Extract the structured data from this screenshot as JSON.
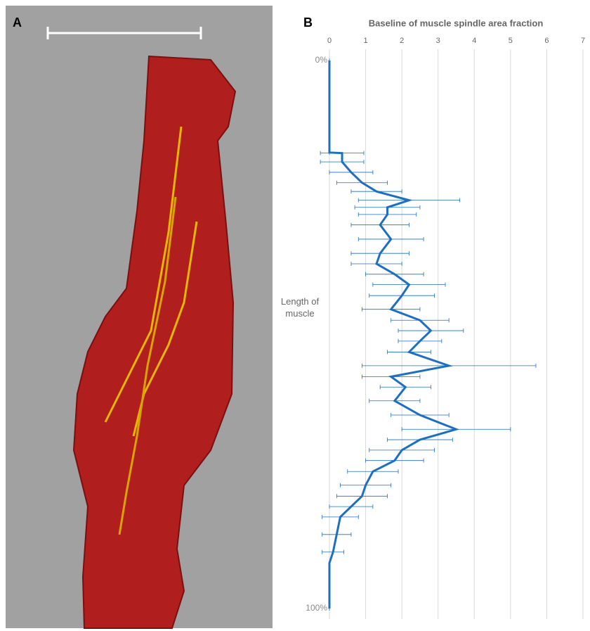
{
  "panel_a": {
    "label": "A"
  },
  "chart_data": {
    "type": "profile",
    "panel_label": "B",
    "x_label": "Baseline of muscle spindle area fraction",
    "y_label": "Length of muscle",
    "xlim": [
      0,
      7
    ],
    "xticks": [
      0,
      1,
      2,
      3,
      4,
      5,
      6,
      7
    ],
    "ylim": [
      0,
      100
    ],
    "yticks": [
      {
        "value": 0,
        "label": "0%"
      },
      {
        "value": 100,
        "label": "100%"
      }
    ],
    "grid": true,
    "series": [
      {
        "color": "#1f6fbf",
        "positions": [
          0,
          16.8,
          16.9,
          18.5,
          20.4,
          22.3,
          23.9,
          25.5,
          26.8,
          28.1,
          30.0,
          32.6,
          35.2,
          37.1,
          39.0,
          40.9,
          42.9,
          45.4,
          47.4,
          49.3,
          51.2,
          53.2,
          55.7,
          57.7,
          59.6,
          62.1,
          64.7,
          67.3,
          69.2,
          71.1,
          73.0,
          75.0,
          77.5,
          79.5,
          81.4,
          83.3,
          86.5,
          89.7,
          91.7,
          100
        ],
        "values": [
          0,
          0,
          0.35,
          0.35,
          0.6,
          0.9,
          1.3,
          2.2,
          1.6,
          1.6,
          1.4,
          1.7,
          1.4,
          1.3,
          1.8,
          2.2,
          2.0,
          1.7,
          2.5,
          2.8,
          2.5,
          2.2,
          3.3,
          1.7,
          2.1,
          1.8,
          2.5,
          3.5,
          2.5,
          2.0,
          1.8,
          1.2,
          1.0,
          0.9,
          0.6,
          0.3,
          0.2,
          0.1,
          0,
          0
        ],
        "errors": [
          0,
          0,
          0.6,
          0.6,
          0.6,
          0.7,
          0.7,
          1.4,
          0.9,
          0.8,
          0.8,
          0.9,
          0.8,
          0.7,
          0.8,
          1.0,
          0.9,
          0.8,
          0.8,
          0.9,
          0.6,
          0.6,
          2.4,
          0.8,
          0.7,
          0.7,
          0.8,
          1.5,
          0.9,
          0.9,
          0.8,
          0.7,
          0.7,
          0.7,
          0.6,
          0.5,
          0.4,
          0.3,
          0,
          0
        ]
      }
    ]
  }
}
